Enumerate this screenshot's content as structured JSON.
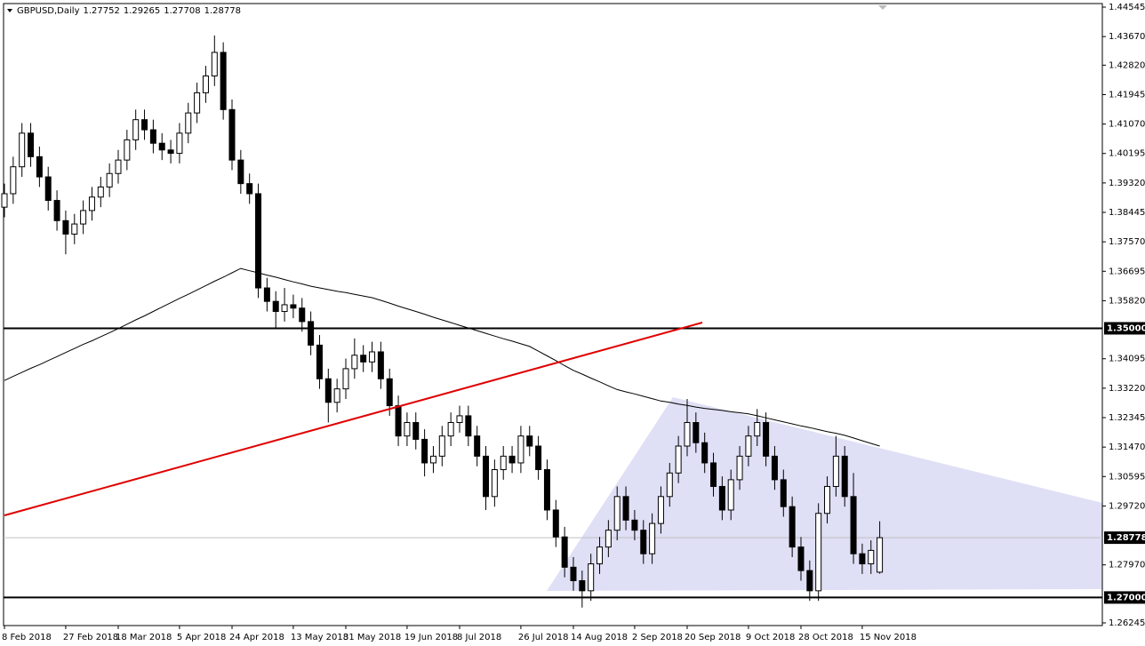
{
  "chart_data": {
    "type": "candlestick",
    "title": "GBPUSD,Daily",
    "categories": [
      "8 Feb 2018",
      null,
      null,
      null,
      null,
      null,
      null,
      "27 Feb 2018",
      null,
      null,
      null,
      null,
      null,
      "18 Mar 2018",
      null,
      null,
      null,
      null,
      null,
      null,
      "5 Apr 2018",
      null,
      null,
      null,
      null,
      null,
      "24 Apr 2018",
      null,
      null,
      null,
      null,
      null,
      null,
      "13 May 2018",
      null,
      null,
      null,
      null,
      null,
      "31 May 2018",
      null,
      null,
      null,
      null,
      null,
      null,
      "19 Jun 2018",
      null,
      null,
      null,
      null,
      null,
      "8 Jul 2018",
      null,
      null,
      null,
      null,
      null,
      null,
      "26 Jul 2018",
      null,
      null,
      null,
      null,
      null,
      "14 Aug 2018",
      null,
      null,
      null,
      null,
      null,
      null,
      "2 Sep 2018",
      null,
      null,
      null,
      null,
      null,
      "20 Sep 2018",
      null,
      null,
      null,
      null,
      null,
      null,
      "9 Oct 2018",
      null,
      null,
      null,
      null,
      null,
      "28 Oct 2018",
      null,
      null,
      null,
      null,
      null,
      null,
      "15 Nov 2018",
      null,
      null
    ],
    "open": [
      1.386,
      1.39,
      1.398,
      1.408,
      1.401,
      1.395,
      1.388,
      1.382,
      1.378,
      1.381,
      1.385,
      1.389,
      1.392,
      1.396,
      1.4,
      1.406,
      1.412,
      1.409,
      1.405,
      1.403,
      1.402,
      1.408,
      1.414,
      1.42,
      1.425,
      1.432,
      1.415,
      1.4,
      1.393,
      1.39,
      1.362,
      1.358,
      1.355,
      1.357,
      1.356,
      1.352,
      1.345,
      1.335,
      1.328,
      1.332,
      1.338,
      1.342,
      1.34,
      1.343,
      1.335,
      1.327,
      1.318,
      1.322,
      1.317,
      1.31,
      1.312,
      1.318,
      1.322,
      1.324,
      1.318,
      1.312,
      1.3,
      1.308,
      1.312,
      1.31,
      1.318,
      1.315,
      1.308,
      1.296,
      1.288,
      1.279,
      1.275,
      1.272,
      1.28,
      1.285,
      1.29,
      1.3,
      1.293,
      1.29,
      1.283,
      1.292,
      1.3,
      1.307,
      1.315,
      1.322,
      1.316,
      1.31,
      1.303,
      1.296,
      1.305,
      1.312,
      1.318,
      1.322,
      1.312,
      1.305,
      1.297,
      1.285,
      1.278,
      1.272,
      1.295,
      1.303,
      1.312,
      1.3,
      1.283,
      1.28,
      1.27752
    ],
    "high": [
      1.393,
      1.401,
      1.411,
      1.411,
      1.404,
      1.398,
      1.391,
      1.385,
      1.384,
      1.388,
      1.392,
      1.395,
      1.399,
      1.403,
      1.409,
      1.415,
      1.415,
      1.412,
      1.408,
      1.406,
      1.411,
      1.417,
      1.423,
      1.428,
      1.437,
      1.435,
      1.418,
      1.403,
      1.396,
      1.393,
      1.365,
      1.361,
      1.362,
      1.36,
      1.359,
      1.355,
      1.348,
      1.338,
      1.335,
      1.341,
      1.347,
      1.345,
      1.346,
      1.346,
      1.338,
      1.33,
      1.325,
      1.325,
      1.32,
      1.315,
      1.321,
      1.325,
      1.327,
      1.327,
      1.321,
      1.315,
      1.311,
      1.315,
      1.315,
      1.321,
      1.321,
      1.318,
      1.311,
      1.299,
      1.291,
      1.282,
      1.278,
      1.283,
      1.288,
      1.293,
      1.303,
      1.303,
      1.296,
      1.293,
      1.295,
      1.303,
      1.31,
      1.318,
      1.329,
      1.325,
      1.319,
      1.313,
      1.306,
      1.308,
      1.315,
      1.321,
      1.326,
      1.325,
      1.315,
      1.308,
      1.3,
      1.288,
      1.281,
      1.298,
      1.306,
      1.318,
      1.315,
      1.307,
      1.286,
      1.287,
      1.29265
    ],
    "low": [
      1.383,
      1.387,
      1.395,
      1.398,
      1.392,
      1.385,
      1.379,
      1.372,
      1.375,
      1.378,
      1.382,
      1.386,
      1.389,
      1.393,
      1.397,
      1.403,
      1.406,
      1.402,
      1.4,
      1.399,
      1.399,
      1.405,
      1.411,
      1.417,
      1.422,
      1.412,
      1.397,
      1.39,
      1.387,
      1.359,
      1.355,
      1.35,
      1.352,
      1.353,
      1.349,
      1.342,
      1.332,
      1.322,
      1.325,
      1.329,
      1.335,
      1.337,
      1.337,
      1.332,
      1.324,
      1.315,
      1.315,
      1.314,
      1.306,
      1.307,
      1.309,
      1.315,
      1.319,
      1.315,
      1.309,
      1.296,
      1.297,
      1.305,
      1.307,
      1.307,
      1.312,
      1.305,
      1.293,
      1.285,
      1.276,
      1.272,
      1.267,
      1.269,
      1.277,
      1.282,
      1.287,
      1.29,
      1.287,
      1.28,
      1.28,
      1.289,
      1.297,
      1.304,
      1.312,
      1.313,
      1.307,
      1.3,
      1.293,
      1.293,
      1.302,
      1.309,
      1.315,
      1.309,
      1.302,
      1.294,
      1.282,
      1.275,
      1.269,
      1.269,
      1.292,
      1.3,
      1.297,
      1.28,
      1.277,
      1.277,
      1.27708
    ],
    "close": [
      1.39,
      1.398,
      1.408,
      1.401,
      1.395,
      1.388,
      1.382,
      1.378,
      1.381,
      1.385,
      1.389,
      1.392,
      1.396,
      1.4,
      1.406,
      1.412,
      1.409,
      1.405,
      1.403,
      1.402,
      1.408,
      1.414,
      1.42,
      1.425,
      1.432,
      1.415,
      1.4,
      1.393,
      1.39,
      1.362,
      1.358,
      1.355,
      1.357,
      1.356,
      1.352,
      1.345,
      1.335,
      1.328,
      1.332,
      1.338,
      1.342,
      1.34,
      1.343,
      1.335,
      1.327,
      1.318,
      1.322,
      1.317,
      1.31,
      1.312,
      1.318,
      1.322,
      1.324,
      1.318,
      1.312,
      1.3,
      1.308,
      1.312,
      1.31,
      1.318,
      1.315,
      1.308,
      1.296,
      1.288,
      1.279,
      1.275,
      1.272,
      1.28,
      1.285,
      1.29,
      1.3,
      1.293,
      1.29,
      1.283,
      1.292,
      1.3,
      1.307,
      1.315,
      1.322,
      1.316,
      1.31,
      1.303,
      1.296,
      1.305,
      1.312,
      1.318,
      1.322,
      1.312,
      1.305,
      1.297,
      1.285,
      1.278,
      1.272,
      1.295,
      1.303,
      1.312,
      1.3,
      1.283,
      1.28,
      1.284,
      1.28778
    ],
    "ma": [
      1.3345,
      1.3357,
      1.3369,
      1.3381,
      1.3392,
      1.3404,
      1.3416,
      1.3428,
      1.344,
      1.3452,
      1.3463,
      1.3475,
      1.3487,
      1.3499,
      1.3512,
      1.3525,
      1.3537,
      1.355,
      1.3563,
      1.3576,
      1.3589,
      1.3601,
      1.3614,
      1.3627,
      1.364,
      1.3652,
      1.3665,
      1.3678,
      1.3671,
      1.3665,
      1.3658,
      1.3652,
      1.3645,
      1.3638,
      1.3632,
      1.3625,
      1.362,
      1.3615,
      1.361,
      1.3606,
      1.3601,
      1.3596,
      1.3591,
      1.3583,
      1.3575,
      1.3566,
      1.3558,
      1.355,
      1.3542,
      1.3533,
      1.3525,
      1.3517,
      1.3509,
      1.3501,
      1.3493,
      1.3485,
      1.3477,
      1.3469,
      1.3462,
      1.3454,
      1.3446,
      1.3432,
      1.3418,
      1.3404,
      1.3389,
      1.3375,
      1.3364,
      1.3352,
      1.3341,
      1.3329,
      1.3318,
      1.3311,
      1.3305,
      1.3298,
      1.3291,
      1.3284,
      1.328,
      1.3275,
      1.3271,
      1.3266,
      1.3262,
      1.3259,
      1.3256,
      1.3252,
      1.3249,
      1.3246,
      1.324,
      1.3234,
      1.3228,
      1.3222,
      1.3216,
      1.321,
      1.3205,
      1.3199,
      1.3193,
      1.3188,
      1.3182,
      1.3174,
      1.3166,
      1.3158,
      1.315
    ],
    "ylim": [
      1.26166,
      1.44651
    ],
    "yticks": [
      1.44545,
      {
        "value": 1.4367,
        "label": "1.43670"
      },
      {
        "value": 1.4282,
        "label": "1.42820"
      },
      1.41945,
      {
        "value": 1.4107,
        "label": "1.41070"
      },
      1.40195,
      {
        "value": 1.3932,
        "label": "1.39320"
      },
      1.38445,
      {
        "value": 1.3757,
        "label": "1.37570"
      },
      1.36695,
      {
        "value": 1.3582,
        "label": "1.35820"
      },
      1.34095,
      {
        "value": 1.3322,
        "label": "1.33220"
      },
      1.32345,
      {
        "value": 1.3147,
        "label": "1.31470"
      },
      1.30595,
      {
        "value": 1.2972,
        "label": "1.29720"
      },
      {
        "value": 1.2797,
        "label": "1.27970"
      },
      1.26245
    ],
    "levels": [
      {
        "value": 1.35,
        "label": "1.35000"
      },
      {
        "value": 1.27,
        "label": "1.27000"
      }
    ],
    "level_color": "#000000",
    "ma_color": "#000000",
    "bull_color": "#ffffff",
    "bear_color": "#000000"
  }
}
